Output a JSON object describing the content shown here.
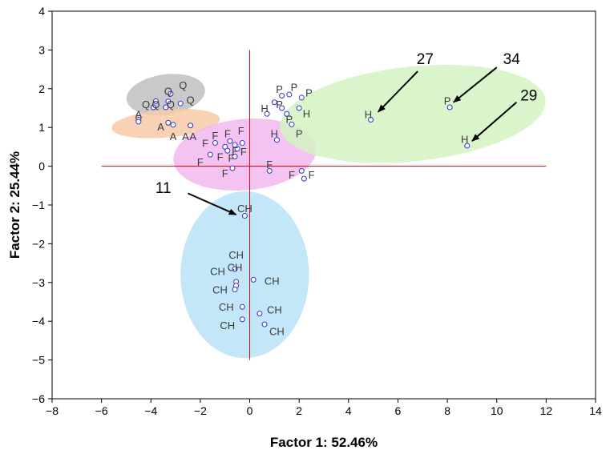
{
  "chart_data": {
    "type": "scatter",
    "title": "",
    "xlabel": "Factor 1: 52.46%",
    "ylabel": "Factor 2: 25.44%",
    "xlim": [
      -8,
      14
    ],
    "ylim": [
      -6,
      4
    ],
    "xticks": [
      -8,
      -6,
      -4,
      -2,
      0,
      2,
      4,
      6,
      8,
      10,
      12,
      14
    ],
    "yticks": [
      -6,
      -5,
      -4,
      -3,
      -2,
      -1,
      0,
      1,
      2,
      3,
      4
    ],
    "grid": false,
    "reference_lines": {
      "x": 0,
      "y": 0,
      "color": "#dd0000",
      "x_range": [
        -6,
        12
      ],
      "y_range": [
        -5,
        3
      ]
    },
    "marker_color": "#3333cc",
    "groups": [
      {
        "label": "Q",
        "color": "#bfbfbf",
        "ellipse": {
          "cx": -3.4,
          "cy": 1.85,
          "rx": 1.6,
          "ry": 0.52,
          "angle": -8
        },
        "points": [
          [
            -3.2,
            1.87
          ],
          [
            -2.8,
            1.62
          ],
          [
            -3.8,
            1.68
          ],
          [
            -3.4,
            1.52
          ],
          [
            -3.9,
            1.52
          ],
          [
            -3.3,
            1.67
          ]
        ]
      },
      {
        "label": "A",
        "color": "#f8c9a8",
        "ellipse": {
          "cx": -3.4,
          "cy": 1.1,
          "rx": 2.2,
          "ry": 0.36,
          "angle": -5
        },
        "points": [
          [
            -4.5,
            1.2
          ],
          [
            -4.5,
            1.15
          ],
          [
            -3.3,
            1.12
          ],
          [
            -3.1,
            1.07
          ],
          [
            -2.4,
            1.05
          ]
        ]
      },
      {
        "label": "F",
        "color": "#f2b8ee",
        "ellipse": {
          "cx": -0.2,
          "cy": 0.3,
          "rx": 2.9,
          "ry": 0.92,
          "angle": -5
        },
        "points": [
          [
            -1.6,
            0.3
          ],
          [
            -1.4,
            0.6
          ],
          [
            -1.0,
            0.5
          ],
          [
            -0.8,
            0.65
          ],
          [
            -0.6,
            0.55
          ],
          [
            -0.3,
            0.6
          ],
          [
            -0.9,
            0.4
          ],
          [
            -0.6,
            0.25
          ],
          [
            -0.5,
            0.45
          ],
          [
            -0.7,
            -0.05
          ],
          [
            0.8,
            -0.12
          ],
          [
            2.1,
            -0.12
          ],
          [
            2.2,
            -0.32
          ]
        ]
      },
      {
        "label": "H",
        "color": "#d4f3c2",
        "ellipse": {
          "cx": 6.6,
          "cy": 1.35,
          "rx": 5.4,
          "ry": 1.22,
          "angle": -6
        },
        "points": [
          [
            0.7,
            1.35
          ],
          [
            1.1,
            0.68
          ],
          [
            2.0,
            1.5
          ],
          [
            4.9,
            1.2
          ],
          [
            8.8,
            0.53
          ]
        ]
      },
      {
        "label": "P",
        "color": "#d4f3c2",
        "ellipse": null,
        "points": [
          [
            1.3,
            1.82
          ],
          [
            1.6,
            1.85
          ],
          [
            2.1,
            1.77
          ],
          [
            1.3,
            1.5
          ],
          [
            1.0,
            1.65
          ],
          [
            1.5,
            1.35
          ],
          [
            1.7,
            1.08
          ],
          [
            8.1,
            1.52
          ]
        ]
      },
      {
        "label": "CH",
        "color": "#b8e3f8",
        "ellipse": {
          "cx": -0.2,
          "cy": -2.8,
          "rx": 2.6,
          "ry": 2.15,
          "angle": 0
        },
        "points": [
          [
            -0.2,
            -1.28
          ],
          [
            -0.6,
            -2.65
          ],
          [
            -0.55,
            -2.98
          ],
          [
            -0.55,
            -3.08
          ],
          [
            -0.6,
            -3.18
          ],
          [
            0.15,
            -2.93
          ],
          [
            -0.3,
            -3.63
          ],
          [
            -0.3,
            -3.95
          ],
          [
            0.4,
            -3.8
          ],
          [
            0.6,
            -4.08
          ]
        ]
      }
    ],
    "point_labels": [
      {
        "text": "Q",
        "x": -2.7,
        "y": 2.1
      },
      {
        "text": "Q",
        "x": -3.3,
        "y": 1.94
      },
      {
        "text": "Q",
        "x": -2.4,
        "y": 1.72
      },
      {
        "text": "Q",
        "x": -4.2,
        "y": 1.6
      },
      {
        "text": "Q",
        "x": -3.2,
        "y": 1.6
      },
      {
        "text": "Q",
        "x": -3.8,
        "y": 1.6
      },
      {
        "text": "A",
        "x": -4.5,
        "y": 1.35
      },
      {
        "text": "A",
        "x": -3.6,
        "y": 1.02
      },
      {
        "text": "A",
        "x": -3.1,
        "y": 0.78
      },
      {
        "text": "A",
        "x": -2.6,
        "y": 0.78
      },
      {
        "text": "A",
        "x": -2.3,
        "y": 0.78
      },
      {
        "text": "F",
        "x": -1.4,
        "y": 0.8
      },
      {
        "text": "F",
        "x": -0.9,
        "y": 0.85
      },
      {
        "text": "F",
        "x": -0.35,
        "y": 0.92
      },
      {
        "text": "F",
        "x": -1.8,
        "y": 0.6
      },
      {
        "text": "F",
        "x": -1.2,
        "y": 0.25
      },
      {
        "text": "F",
        "x": -0.75,
        "y": 0.22
      },
      {
        "text": "F",
        "x": -0.25,
        "y": 0.38
      },
      {
        "text": "F",
        "x": -0.6,
        "y": 0.4
      },
      {
        "text": "F",
        "x": -2.0,
        "y": 0.12
      },
      {
        "text": "F",
        "x": -1.0,
        "y": -0.17
      },
      {
        "text": "F",
        "x": 0.8,
        "y": 0.05
      },
      {
        "text": "F",
        "x": 1.7,
        "y": -0.22
      },
      {
        "text": "F",
        "x": 2.5,
        "y": -0.22
      },
      {
        "text": "P",
        "x": 1.2,
        "y": 2.0
      },
      {
        "text": "P",
        "x": 1.8,
        "y": 2.05
      },
      {
        "text": "P",
        "x": 2.4,
        "y": 1.9
      },
      {
        "text": "P",
        "x": 1.2,
        "y": 1.6
      },
      {
        "text": "P",
        "x": 1.6,
        "y": 1.22
      },
      {
        "text": "P",
        "x": 2.0,
        "y": 0.85
      },
      {
        "text": "P",
        "x": 8.0,
        "y": 1.7
      },
      {
        "text": "H",
        "x": 0.6,
        "y": 1.5
      },
      {
        "text": "H",
        "x": 1.0,
        "y": 0.85
      },
      {
        "text": "H",
        "x": 2.3,
        "y": 1.37
      },
      {
        "text": "H",
        "x": 4.8,
        "y": 1.35
      },
      {
        "text": "H",
        "x": 8.7,
        "y": 0.7
      },
      {
        "text": "CH",
        "x": -0.2,
        "y": -1.08
      },
      {
        "text": "CH",
        "x": -0.55,
        "y": -2.28
      },
      {
        "text": "CH",
        "x": -0.6,
        "y": -2.6
      },
      {
        "text": "CH",
        "x": -1.3,
        "y": -2.7
      },
      {
        "text": "CH",
        "x": -1.2,
        "y": -3.18
      },
      {
        "text": "CH",
        "x": 0.9,
        "y": -2.95
      },
      {
        "text": "CH",
        "x": -0.95,
        "y": -3.62
      },
      {
        "text": "CH",
        "x": -0.9,
        "y": -4.1
      },
      {
        "text": "CH",
        "x": 1.0,
        "y": -3.7
      },
      {
        "text": "CH",
        "x": 1.1,
        "y": -4.25
      }
    ],
    "annotations": [
      {
        "label": "11",
        "label_x": -3.5,
        "label_y": -0.55,
        "arrow_from": [
          -2.5,
          -0.7
        ],
        "arrow_to": [
          -0.55,
          -1.25
        ]
      },
      {
        "label": "27",
        "label_x": 7.1,
        "label_y": 2.78,
        "arrow_from": [
          6.8,
          2.45
        ],
        "arrow_to": [
          5.2,
          1.4
        ]
      },
      {
        "label": "34",
        "label_x": 10.6,
        "label_y": 2.78,
        "arrow_from": [
          10.0,
          2.55
        ],
        "arrow_to": [
          8.25,
          1.65
        ]
      },
      {
        "label": "29",
        "label_x": 11.3,
        "label_y": 1.84,
        "arrow_from": [
          10.8,
          1.65
        ],
        "arrow_to": [
          9.0,
          0.65
        ]
      }
    ]
  }
}
